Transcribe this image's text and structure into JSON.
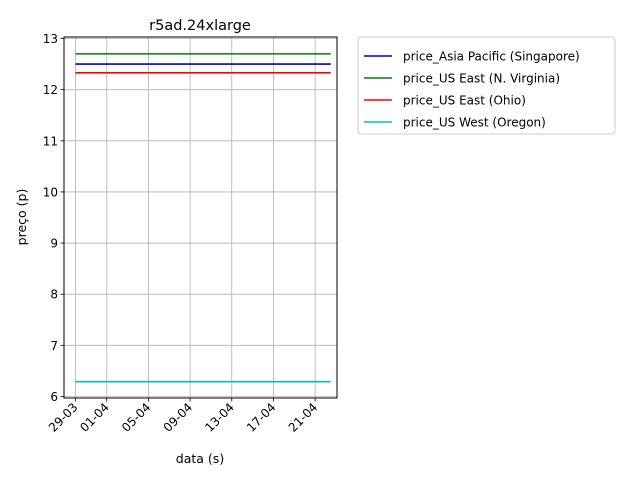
{
  "chart_data": {
    "type": "line",
    "title": "r5ad.24xlarge",
    "xlabel": "data (s)",
    "ylabel": "preço (p)",
    "x_ticks": [
      "29-03",
      "01-04",
      "05-04",
      "09-04",
      "13-04",
      "17-04",
      "21-04"
    ],
    "x_tick_days": [
      0,
      3,
      7,
      11,
      15,
      19,
      23
    ],
    "x_range_days": [
      -1.1,
      25.1
    ],
    "x_data_days": [
      0,
      24.5
    ],
    "ylim": [
      5.97,
      13.03
    ],
    "y_ticks": [
      6,
      7,
      8,
      9,
      10,
      11,
      12,
      13
    ],
    "grid": true,
    "legend_position": "outside-right",
    "series": [
      {
        "name": "price_Asia Pacific (Singapore)",
        "color": "#0000bf",
        "values": [
          12.5,
          12.5
        ]
      },
      {
        "name": "price_US East (N. Virginia)",
        "color": "#008000",
        "values": [
          12.7,
          12.7
        ]
      },
      {
        "name": "price_US East (Ohio)",
        "color": "#ff0000",
        "values": [
          12.33,
          12.33
        ]
      },
      {
        "name": "price_US West (Oregon)",
        "color": "#00bfbf",
        "values": [
          6.29,
          6.29
        ]
      }
    ]
  }
}
